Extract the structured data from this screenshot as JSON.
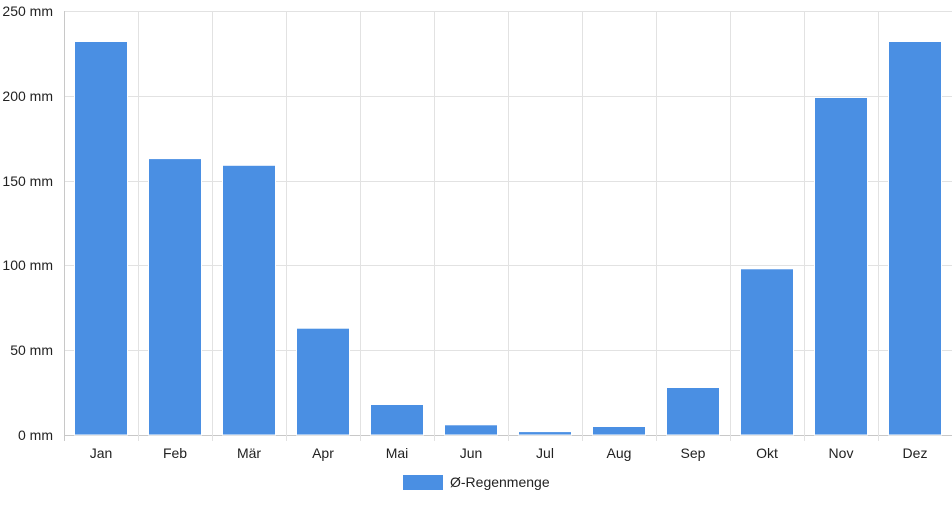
{
  "chart_data": {
    "type": "bar",
    "categories": [
      "Jan",
      "Feb",
      "Mär",
      "Apr",
      "Mai",
      "Jun",
      "Jul",
      "Aug",
      "Sep",
      "Okt",
      "Nov",
      "Dez"
    ],
    "series": [
      {
        "name": "Ø-Regenmenge",
        "values": [
          232,
          163,
          159,
          63,
          18,
          6,
          2,
          5,
          28,
          98,
          199,
          232
        ]
      }
    ],
    "ylim": [
      0,
      250
    ],
    "yticks": [
      0,
      50,
      100,
      150,
      200,
      250
    ],
    "ytick_labels": [
      "0 mm",
      "50 mm",
      "100 mm",
      "150 mm",
      "200 mm",
      "250 mm"
    ],
    "grid": true,
    "legend_position": "bottom",
    "colors": {
      "bar": "#4a8fe3",
      "grid": "#e2e2e2",
      "axis": "#c8c8c8"
    }
  }
}
